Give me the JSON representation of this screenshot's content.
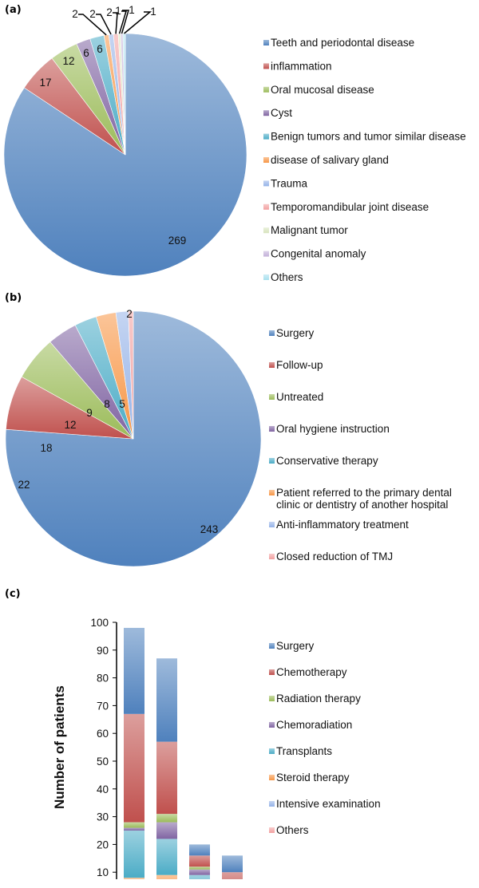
{
  "chart_data": [
    {
      "panel_label": "(a)",
      "type": "pie",
      "start_angle": "12 o'clock, clockwise",
      "categories": [
        "Teeth and periodontal disease",
        "inflammation",
        "Oral mucosal disease",
        "Cyst",
        "Benign tumors and tumor similar disease",
        "disease of salivary gland",
        "Trauma",
        "Temporomandibular joint disease",
        "Malignant tumor",
        "Congenital anomaly",
        "Others"
      ],
      "values": [
        269,
        17,
        12,
        6,
        6,
        2,
        2,
        2,
        1,
        1,
        1
      ],
      "colors": [
        "#4F81BD",
        "#C0504D",
        "#9BBB59",
        "#8064A2",
        "#4BACC6",
        "#F79646",
        "#95B3E8",
        "#F2A0A0",
        "#D7E4BD",
        "#C3B1D9",
        "#A8E0EE"
      ],
      "legend": "right",
      "data_labels": true
    },
    {
      "panel_label": "(b)",
      "type": "pie",
      "start_angle": "12 o'clock, clockwise",
      "categories": [
        "Surgery",
        "Follow-up",
        "Untreated",
        "Oral hygiene instruction",
        "Conservative therapy",
        "Patient referred to the primary dental clinic or  dentistry of another hospital",
        "Anti-inflammatory treatment",
        "Closed reduction of TMJ"
      ],
      "legend_lines": [
        [
          "Surgery"
        ],
        [
          "Follow-up"
        ],
        [
          "Untreated"
        ],
        [
          "Oral hygiene instruction"
        ],
        [
          "Conservative therapy"
        ],
        [
          "Patient referred to the primary dental",
          "clinic or  dentistry of another hospital"
        ],
        [
          "Anti-inflammatory treatment"
        ],
        [
          "Closed reduction of TMJ"
        ]
      ],
      "values": [
        243,
        22,
        18,
        12,
        9,
        8,
        5,
        2
      ],
      "colors": [
        "#4F81BD",
        "#C0504D",
        "#9BBB59",
        "#8064A2",
        "#4BACC6",
        "#F79646",
        "#95B3E8",
        "#F2A0A0"
      ],
      "legend": "right",
      "data_labels": true
    },
    {
      "panel_label": "(c)",
      "type": "bar",
      "stacked": true,
      "ylabel": "Number of patients",
      "yticks": [
        10,
        20,
        30,
        40,
        50,
        60,
        70,
        80,
        90,
        100
      ],
      "ylim": [
        0,
        100
      ],
      "legend": "right",
      "legend_entries": [
        "Surgery",
        "Chemotherapy",
        "Radiation therapy",
        "Chemoradiation",
        "Transplants",
        "Steroid therapy",
        "Intensive examination",
        "Others"
      ],
      "legend_colors": [
        "#4F81BD",
        "#C0504D",
        "#9BBB59",
        "#8064A2",
        "#4BACC6",
        "#F79646",
        "#95B3E8",
        "#F2A0A0"
      ],
      "stack_order_bottom_to_top": [
        "Steroid therapy",
        "Transplants",
        "Chemoradiation",
        "Radiation therapy",
        "Chemotherapy",
        "Surgery"
      ],
      "bars": [
        {
          "segments": [
            8,
            17,
            1,
            2,
            39,
            31
          ],
          "total": 98
        },
        {
          "segments": [
            9,
            13,
            6,
            3,
            26,
            30
          ],
          "total": 87
        },
        {
          "segments": [
            0,
            9,
            2,
            1,
            4,
            4
          ],
          "total": 20
        },
        {
          "segments": [
            0,
            0,
            0,
            0,
            10,
            6
          ],
          "total": 16
        }
      ],
      "segment_colors": [
        "#F79646",
        "#4BACC6",
        "#8064A2",
        "#9BBB59",
        "#C0504D",
        "#4F81BD"
      ]
    }
  ]
}
